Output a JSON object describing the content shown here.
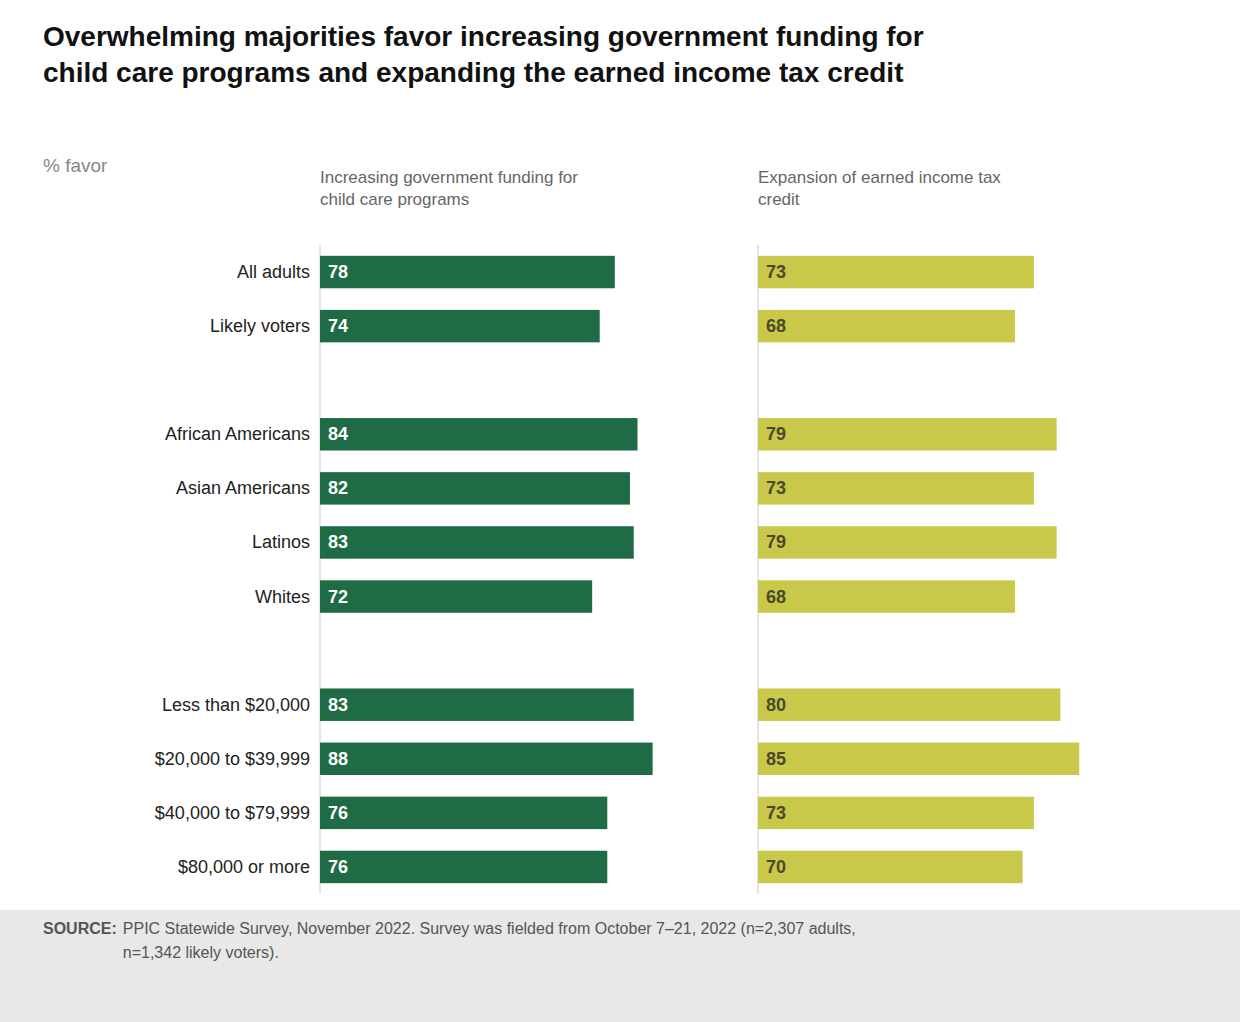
{
  "chart_data": {
    "type": "bar",
    "orientation": "horizontal",
    "title": "Overwhelming majorities favor increasing government funding for\nchild care programs and expanding the earned income tax credit",
    "subtitle": "% favor",
    "annotations": [
      "SOURCE:",
      " PPIC Statewide Survey, November 2022. Survey was fielded from October 7–21, 2022 (n=2,307 adults,\nn=1,342 likely voters)."
    ],
    "categories": [
      "All adults",
      "Likely voters",
      null,
      "African Americans",
      "Asian Americans",
      "Latinos",
      "Whites",
      null,
      "Less than $20,000",
      "$20,000 to $39,999",
      "$40,000 to $79,999",
      "$80,000 or more"
    ],
    "series": [
      {
        "name": "Increasing government funding for\nchild care programs",
        "color": "#1e6b45",
        "values": [
          78,
          74,
          null,
          84,
          82,
          83,
          72,
          null,
          83,
          88,
          76,
          76
        ]
      },
      {
        "name": "Expansion of earned income tax\ncredit",
        "color": "#c8c84a",
        "values": [
          73,
          68,
          null,
          79,
          73,
          79,
          68,
          null,
          80,
          85,
          73,
          70
        ]
      }
    ],
    "xlim": [
      0,
      100
    ],
    "data_labels": true,
    "tick_labels": "y",
    "grid": false
  }
}
